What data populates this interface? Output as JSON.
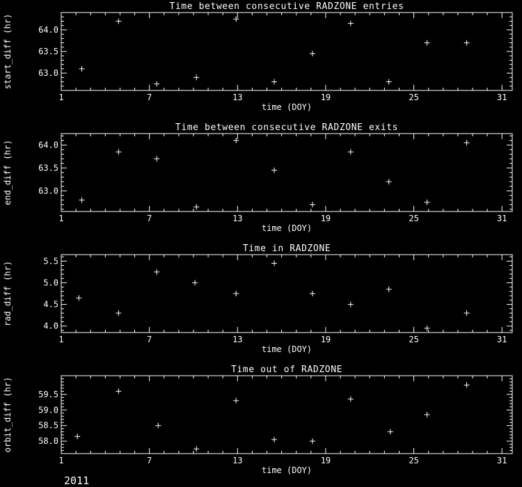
{
  "page": {
    "background": "#000000",
    "foreground": "#ffffff",
    "footer_year": "2011"
  },
  "chart_data": [
    {
      "type": "scatter",
      "title": "Time between consecutive RADZONE entries",
      "xlabel": "time (DOY)",
      "ylabel": "start_diff (hr)",
      "xlim": [
        1,
        31.7
      ],
      "ylim": [
        62.6,
        64.4
      ],
      "xticks": [
        1,
        7,
        13,
        19,
        25,
        31
      ],
      "yticks": [
        63.0,
        63.5,
        64.0
      ],
      "x_minor": 1,
      "y_minor": 0.1,
      "grid": false,
      "legend": "none",
      "marker": "plus",
      "color": "#ffffff",
      "x": [
        2.4,
        4.9,
        7.5,
        10.2,
        12.9,
        15.5,
        18.1,
        20.7,
        23.3,
        25.9,
        28.6
      ],
      "y": [
        63.1,
        64.2,
        62.75,
        62.9,
        64.25,
        62.8,
        63.45,
        64.15,
        62.8,
        63.7,
        63.7
      ]
    },
    {
      "type": "scatter",
      "title": "Time between consecutive RADZONE exits",
      "xlabel": "time (DOY)",
      "ylabel": "end_diff (hr)",
      "xlim": [
        1,
        31.7
      ],
      "ylim": [
        62.55,
        64.25
      ],
      "xticks": [
        1,
        7,
        13,
        19,
        25,
        31
      ],
      "yticks": [
        63.0,
        63.5,
        64.0
      ],
      "x_minor": 1,
      "y_minor": 0.1,
      "grid": false,
      "legend": "none",
      "marker": "plus",
      "color": "#ffffff",
      "x": [
        2.4,
        4.9,
        7.5,
        10.2,
        12.9,
        15.5,
        18.1,
        20.7,
        23.3,
        25.9,
        28.6
      ],
      "y": [
        62.8,
        63.85,
        63.7,
        62.65,
        64.1,
        63.45,
        62.7,
        63.85,
        63.2,
        62.75,
        64.05
      ]
    },
    {
      "type": "scatter",
      "title": "Time in RADZONE",
      "xlabel": "time (DOY)",
      "ylabel": "rad_diff (hr)",
      "xlim": [
        1,
        31.7
      ],
      "ylim": [
        3.85,
        5.65
      ],
      "xticks": [
        1,
        7,
        13,
        19,
        25,
        31
      ],
      "yticks": [
        4.0,
        4.5,
        5.0,
        5.5
      ],
      "x_minor": 1,
      "y_minor": 0.1,
      "grid": false,
      "legend": "none",
      "marker": "plus",
      "color": "#ffffff",
      "x": [
        2.2,
        4.9,
        7.5,
        10.1,
        12.9,
        15.5,
        18.1,
        20.7,
        23.3,
        25.9,
        28.6
      ],
      "y": [
        4.65,
        4.3,
        5.25,
        5.0,
        4.75,
        5.45,
        4.75,
        4.5,
        4.85,
        3.95,
        4.3
      ]
    },
    {
      "type": "scatter",
      "title": "Time out of RADZONE",
      "xlabel": "time (DOY)",
      "ylabel": "orbit_diff (hr)",
      "xlim": [
        1,
        31.7
      ],
      "ylim": [
        57.6,
        60.1
      ],
      "xticks": [
        1,
        7,
        13,
        19,
        25,
        31
      ],
      "yticks": [
        58.0,
        58.5,
        59.0,
        59.5
      ],
      "x_minor": 1,
      "y_minor": 0.1,
      "grid": false,
      "legend": "none",
      "marker": "plus",
      "color": "#ffffff",
      "x": [
        2.1,
        4.9,
        7.6,
        10.2,
        12.9,
        15.5,
        18.1,
        20.7,
        23.4,
        25.9,
        28.6
      ],
      "y": [
        58.15,
        59.6,
        58.5,
        57.75,
        59.3,
        58.05,
        58.0,
        59.35,
        58.3,
        58.85,
        59.8
      ]
    }
  ]
}
